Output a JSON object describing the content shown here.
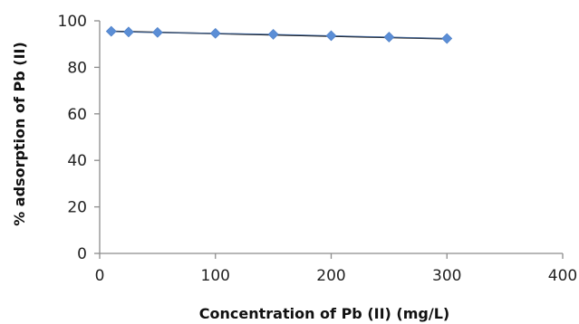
{
  "chart_data": {
    "type": "line",
    "title": "",
    "xlabel": "Concentration of Pb (II) (mg/L)",
    "ylabel": "% adsorption of Pb (II)",
    "xlim": [
      0,
      400
    ],
    "ylim": [
      0,
      100
    ],
    "xticks": [
      0,
      100,
      200,
      300,
      400
    ],
    "yticks": [
      0,
      20,
      40,
      60,
      80,
      100
    ],
    "grid": false,
    "legend": "none",
    "series": [
      {
        "x": [
          10,
          25,
          50,
          100,
          150,
          200,
          250,
          300
        ],
        "y": [
          95.5,
          95.2,
          95.0,
          94.6,
          94.2,
          93.6,
          93.0,
          92.4
        ],
        "marker": "diamond",
        "marker_color": "#5B8ED6"
      }
    ],
    "trendline": {
      "x": [
        10,
        300
      ],
      "y": [
        95.5,
        92.3
      ],
      "color": "#111111"
    }
  }
}
